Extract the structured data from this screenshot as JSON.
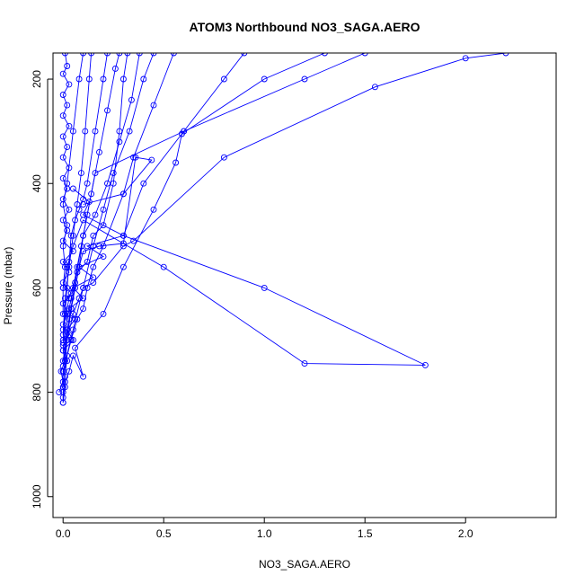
{
  "chart_data": {
    "type": "line",
    "title": "ATOM3 Northbound NO3_SAGA.AERO",
    "xlabel": "NO3_SAGA.AERO",
    "ylabel": "Pressure (mbar)",
    "xlim": [
      -0.05,
      2.45
    ],
    "ylim": [
      1040,
      150
    ],
    "y_reversed": true,
    "xticks": [
      0.0,
      0.5,
      1.0,
      1.5,
      2.0
    ],
    "xtick_labels": [
      "0.0",
      "0.5",
      "1.0",
      "1.5",
      "2.0"
    ],
    "yticks": [
      200,
      400,
      600,
      800,
      1000
    ],
    "ytick_labels": [
      "200",
      "400",
      "600",
      "800",
      "1000"
    ],
    "grid": false,
    "legend": "none",
    "series_color": "#0000ff",
    "series": [
      {
        "points": [
          [
            0.0,
            820
          ],
          [
            0.01,
            790
          ],
          [
            0.0,
            760
          ],
          [
            0.02,
            740
          ],
          [
            0.0,
            710
          ],
          [
            0.03,
            690
          ],
          [
            0.0,
            670
          ],
          [
            0.02,
            650
          ],
          [
            0.0,
            630
          ],
          [
            0.04,
            610
          ],
          [
            0.0,
            590
          ],
          [
            0.03,
            570
          ],
          [
            0.0,
            550
          ],
          [
            0.05,
            530
          ],
          [
            0.0,
            510
          ],
          [
            0.02,
            490
          ],
          [
            0.0,
            470
          ],
          [
            0.03,
            450
          ],
          [
            0.0,
            430
          ],
          [
            0.02,
            410
          ],
          [
            0.0,
            390
          ],
          [
            0.03,
            370
          ],
          [
            0.0,
            350
          ],
          [
            0.02,
            330
          ],
          [
            0.0,
            310
          ],
          [
            0.03,
            290
          ],
          [
            0.0,
            270
          ],
          [
            0.02,
            250
          ],
          [
            0.0,
            230
          ],
          [
            0.03,
            210
          ],
          [
            0.0,
            190
          ],
          [
            0.02,
            175
          ],
          [
            0.01,
            150
          ]
        ]
      },
      {
        "points": [
          [
            -0.02,
            800
          ],
          [
            0.0,
            780
          ],
          [
            -0.01,
            760
          ],
          [
            0.01,
            740
          ],
          [
            0.0,
            720
          ],
          [
            0.05,
            700
          ],
          [
            0.02,
            680
          ],
          [
            0.06,
            660
          ],
          [
            0.03,
            640
          ],
          [
            0.1,
            620
          ],
          [
            0.05,
            600
          ],
          [
            0.15,
            580
          ],
          [
            0.08,
            560
          ],
          [
            0.2,
            540
          ],
          [
            0.12,
            520
          ],
          [
            0.3,
            500
          ],
          [
            0.4,
            400
          ],
          [
            0.6,
            300
          ],
          [
            0.8,
            200
          ],
          [
            0.9,
            150
          ]
        ]
      },
      {
        "points": [
          [
            0.0,
            810
          ],
          [
            0.01,
            770
          ],
          [
            0.02,
            730
          ],
          [
            0.04,
            700
          ],
          [
            0.07,
            660
          ],
          [
            0.1,
            640
          ],
          [
            0.12,
            600
          ],
          [
            0.15,
            560
          ],
          [
            0.2,
            520
          ],
          [
            0.3,
            420
          ],
          [
            0.35,
            350
          ],
          [
            0.45,
            250
          ],
          [
            0.55,
            150
          ]
        ]
      },
      {
        "points": [
          [
            0.0,
            820
          ],
          [
            0.0,
            800
          ],
          [
            0.01,
            780
          ],
          [
            0.03,
            760
          ],
          [
            0.05,
            730
          ],
          [
            0.1,
            770
          ],
          [
            0.06,
            715
          ],
          [
            0.2,
            650
          ],
          [
            0.3,
            560
          ],
          [
            0.45,
            450
          ],
          [
            0.56,
            360
          ],
          [
            0.59,
            305
          ],
          [
            1.0,
            200
          ],
          [
            1.3,
            150
          ]
        ]
      },
      {
        "points": [
          [
            0.0,
            750
          ],
          [
            0.02,
            700
          ],
          [
            0.05,
            650
          ],
          [
            0.08,
            620
          ],
          [
            0.1,
            600
          ],
          [
            0.15,
            590
          ],
          [
            0.3,
            520
          ],
          [
            0.35,
            510
          ],
          [
            0.8,
            350
          ],
          [
            1.55,
            215
          ],
          [
            2.0,
            160
          ],
          [
            2.2,
            150
          ]
        ]
      },
      {
        "points": [
          [
            0.0,
            720
          ],
          [
            0.02,
            680
          ],
          [
            0.04,
            640
          ],
          [
            0.06,
            600
          ],
          [
            0.08,
            560
          ],
          [
            0.1,
            530
          ],
          [
            0.18,
            520
          ],
          [
            0.3,
            515
          ],
          [
            0.36,
            350
          ],
          [
            0.44,
            355
          ],
          [
            0.3,
            420
          ],
          [
            0.1,
            440
          ]
        ]
      },
      {
        "points": [
          [
            0.0,
            600
          ],
          [
            0.02,
            560
          ],
          [
            0.05,
            520
          ],
          [
            0.1,
            470
          ],
          [
            0.5,
            560
          ],
          [
            1.2,
            745
          ],
          [
            1.8,
            748
          ],
          [
            1.0,
            600
          ],
          [
            0.3,
            500
          ],
          [
            0.1,
            460
          ],
          [
            0.13,
            435
          ],
          [
            0.05,
            410
          ]
        ]
      },
      {
        "points": [
          [
            0.0,
            680
          ],
          [
            0.03,
            620
          ],
          [
            0.07,
            570
          ],
          [
            0.12,
            550
          ],
          [
            0.15,
            500
          ],
          [
            0.2,
            480
          ],
          [
            0.25,
            400
          ],
          [
            0.28,
            300
          ],
          [
            0.3,
            200
          ],
          [
            0.32,
            150
          ]
        ]
      },
      {
        "points": [
          [
            0.0,
            700
          ],
          [
            0.01,
            650
          ],
          [
            0.02,
            600
          ],
          [
            0.03,
            550
          ],
          [
            0.04,
            500
          ],
          [
            0.06,
            470
          ],
          [
            0.08,
            450
          ],
          [
            0.1,
            430
          ],
          [
            0.12,
            400
          ],
          [
            0.16,
            300
          ],
          [
            0.2,
            200
          ],
          [
            0.22,
            150
          ]
        ]
      },
      {
        "points": [
          [
            0.0,
            650
          ],
          [
            0.0,
            600
          ],
          [
            0.01,
            560
          ],
          [
            0.0,
            520
          ],
          [
            0.02,
            480
          ],
          [
            0.0,
            440
          ],
          [
            0.02,
            400
          ],
          [
            0.05,
            300
          ],
          [
            0.08,
            200
          ],
          [
            0.1,
            150
          ]
        ]
      },
      {
        "points": [
          [
            0.0,
            760
          ],
          [
            0.05,
            680
          ],
          [
            0.1,
            600
          ],
          [
            0.15,
            520
          ],
          [
            0.2,
            450
          ],
          [
            0.25,
            380
          ],
          [
            0.33,
            300
          ],
          [
            0.4,
            200
          ],
          [
            0.45,
            150
          ]
        ]
      },
      {
        "points": [
          [
            0.0,
            790
          ],
          [
            0.02,
            700
          ],
          [
            0.04,
            640
          ],
          [
            0.08,
            560
          ],
          [
            0.1,
            500
          ],
          [
            0.14,
            420
          ],
          [
            0.18,
            340
          ],
          [
            0.22,
            260
          ],
          [
            0.26,
            180
          ],
          [
            0.28,
            150
          ]
        ]
      },
      {
        "points": [
          [
            0.0,
            740
          ],
          [
            0.03,
            660
          ],
          [
            0.06,
            590
          ],
          [
            0.09,
            520
          ],
          [
            0.12,
            460
          ],
          [
            0.16,
            380
          ],
          [
            0.6,
            300
          ],
          [
            1.2,
            200
          ],
          [
            1.5,
            150
          ]
        ]
      },
      {
        "points": [
          [
            0.0,
            705
          ],
          [
            0.04,
            620
          ],
          [
            0.07,
            560
          ],
          [
            0.1,
            500
          ],
          [
            0.16,
            460
          ],
          [
            0.22,
            400
          ],
          [
            0.28,
            320
          ],
          [
            0.34,
            240
          ],
          [
            0.38,
            150
          ]
        ]
      },
      {
        "points": [
          [
            0.0,
            690
          ],
          [
            0.01,
            620
          ],
          [
            0.03,
            560
          ],
          [
            0.05,
            500
          ],
          [
            0.07,
            440
          ],
          [
            0.09,
            380
          ],
          [
            0.11,
            300
          ],
          [
            0.13,
            200
          ],
          [
            0.14,
            150
          ]
        ]
      }
    ]
  }
}
